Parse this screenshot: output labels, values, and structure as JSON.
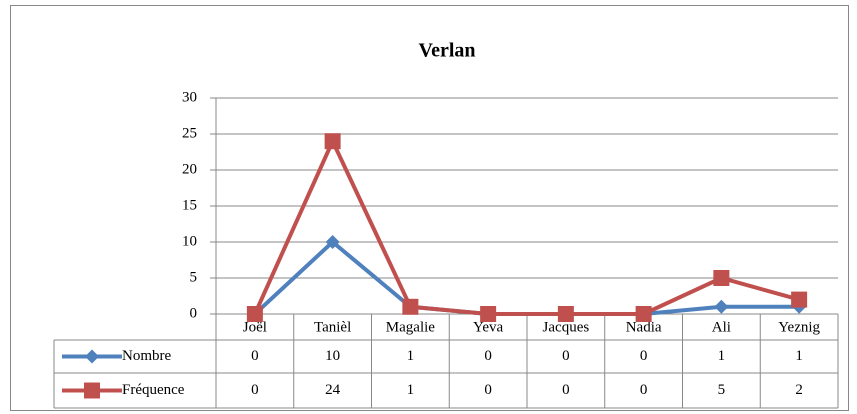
{
  "chart_data": {
    "type": "line",
    "title": "Verlan",
    "categories": [
      "Joël",
      "Tanièl",
      "Magalie",
      "Yeva",
      "Jacques",
      "Nadia",
      "Ali",
      "Yeznig"
    ],
    "series": [
      {
        "name": "Nombre",
        "color": "#4f81bd",
        "marker": "diamond",
        "values": [
          0,
          10,
          1,
          0,
          0,
          0,
          1,
          1
        ]
      },
      {
        "name": "Fréquence",
        "color": "#c0504d",
        "marker": "square",
        "values": [
          0,
          24,
          1,
          0,
          0,
          0,
          5,
          2
        ]
      }
    ],
    "ylim": [
      0,
      30
    ],
    "yticks": [
      0,
      5,
      10,
      15,
      20,
      25,
      30
    ],
    "grid": true,
    "data_table": true
  }
}
